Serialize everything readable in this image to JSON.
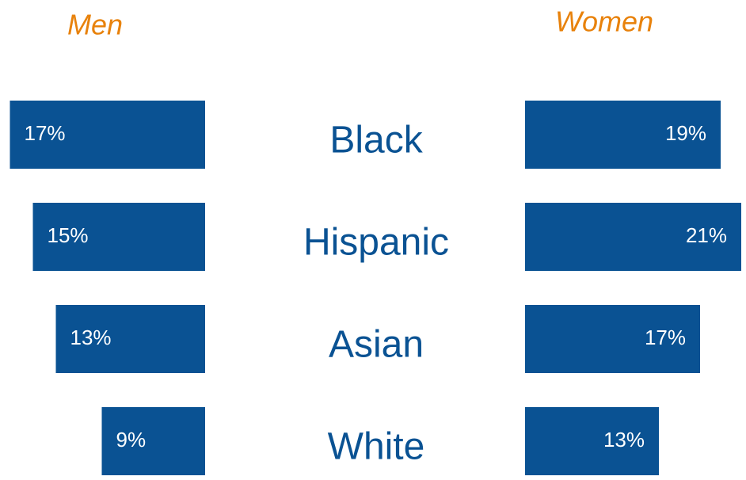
{
  "chart_data": {
    "type": "butterfly",
    "categories": [
      "Black",
      "Hispanic",
      "Asian",
      "White"
    ],
    "series": [
      {
        "name": "Men",
        "color": "#0a5293",
        "values": [
          17,
          15,
          13,
          9
        ],
        "value_labels": [
          "17%",
          "15%",
          "13%",
          "9%"
        ]
      },
      {
        "name": "Women",
        "color": "#0a5293",
        "values": [
          19,
          21,
          17,
          13
        ],
        "value_labels": [
          "19%",
          "21%",
          "17%",
          "13%"
        ]
      }
    ]
  }
}
